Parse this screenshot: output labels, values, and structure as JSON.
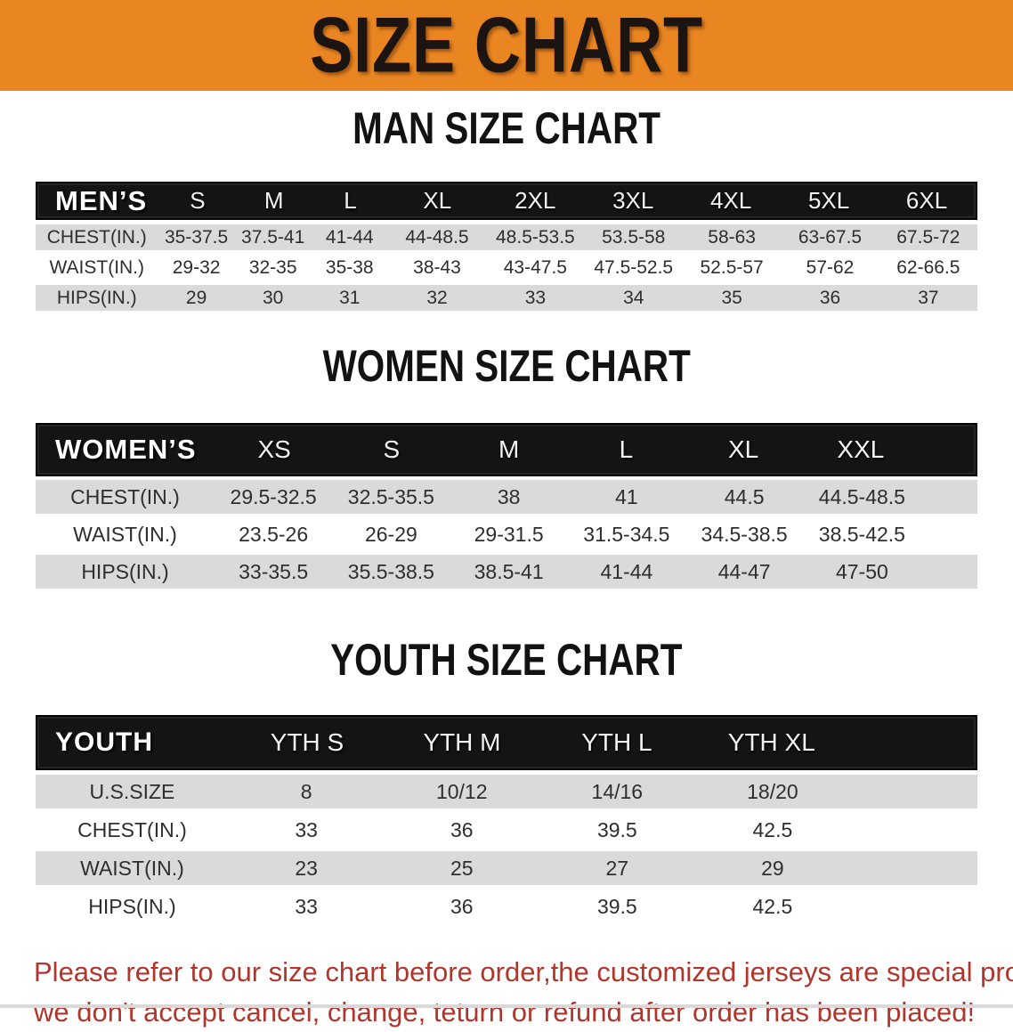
{
  "banner": {
    "title": "SIZE CHART",
    "bg_color": "#EA8621",
    "text_color": "#1c1410"
  },
  "sections": [
    {
      "heading": "MAN SIZE CHART",
      "table": {
        "header_label": "MEN’S",
        "columns": [
          "S",
          "M",
          "L",
          "XL",
          "2XL",
          "3XL",
          "4XL",
          "5XL",
          "6XL"
        ],
        "rows": [
          {
            "label": "CHEST(IN.)",
            "values": [
              "35-37.5",
              "37.5-41",
              "41-44",
              "44-48.5",
              "48.5-53.5",
              "53.5-58",
              "58-63",
              "63-67.5",
              "67.5-72"
            ]
          },
          {
            "label": "WAIST(IN.)",
            "values": [
              "29-32",
              "32-35",
              "35-38",
              "38-43",
              "43-47.5",
              "47.5-52.5",
              "52.5-57",
              "57-62",
              "62-66.5"
            ]
          },
          {
            "label": "HIPS(IN.)",
            "values": [
              "29",
              "30",
              "31",
              "32",
              "33",
              "34",
              "35",
              "36",
              "37"
            ]
          }
        ]
      }
    },
    {
      "heading": "WOMEN SIZE CHART",
      "table": {
        "header_label": "WOMEN’S",
        "columns": [
          "XS",
          "S",
          "M",
          "L",
          "XL",
          "XXL"
        ],
        "rows": [
          {
            "label": "CHEST(IN.)",
            "values": [
              "29.5-32.5",
              "32.5-35.5",
              "38",
              "41",
              "44.5",
              "44.5-48.5"
            ]
          },
          {
            "label": "WAIST(IN.)",
            "values": [
              "23.5-26",
              "26-29",
              "29-31.5",
              "31.5-34.5",
              "34.5-38.5",
              "38.5-42.5"
            ]
          },
          {
            "label": "HIPS(IN.)",
            "values": [
              "33-35.5",
              "35.5-38.5",
              "38.5-41",
              "41-44",
              "44-47",
              "47-50"
            ]
          }
        ]
      }
    },
    {
      "heading": "YOUTH SIZE CHART",
      "table": {
        "header_label": "YOUTH",
        "columns": [
          "YTH S",
          "YTH M",
          "YTH L",
          "YTH XL"
        ],
        "rows": [
          {
            "label": "U.S.SIZE",
            "values": [
              "8",
              "10/12",
              "14/16",
              "18/20"
            ]
          },
          {
            "label": "CHEST(IN.)",
            "values": [
              "33",
              "36",
              "39.5",
              "42.5"
            ]
          },
          {
            "label": "WAIST(IN.)",
            "values": [
              "23",
              "25",
              "27",
              "29"
            ]
          },
          {
            "label": "HIPS(IN.)",
            "values": [
              "33",
              "36",
              "39.5",
              "42.5"
            ]
          }
        ]
      }
    }
  ],
  "disclaimer": {
    "line1": "Please refer to our size chart before order,the customized jerseys are special products,",
    "line2": "we don't accept cancel, change, teturn or refund after order has been placed!",
    "color": "#B0362C"
  }
}
